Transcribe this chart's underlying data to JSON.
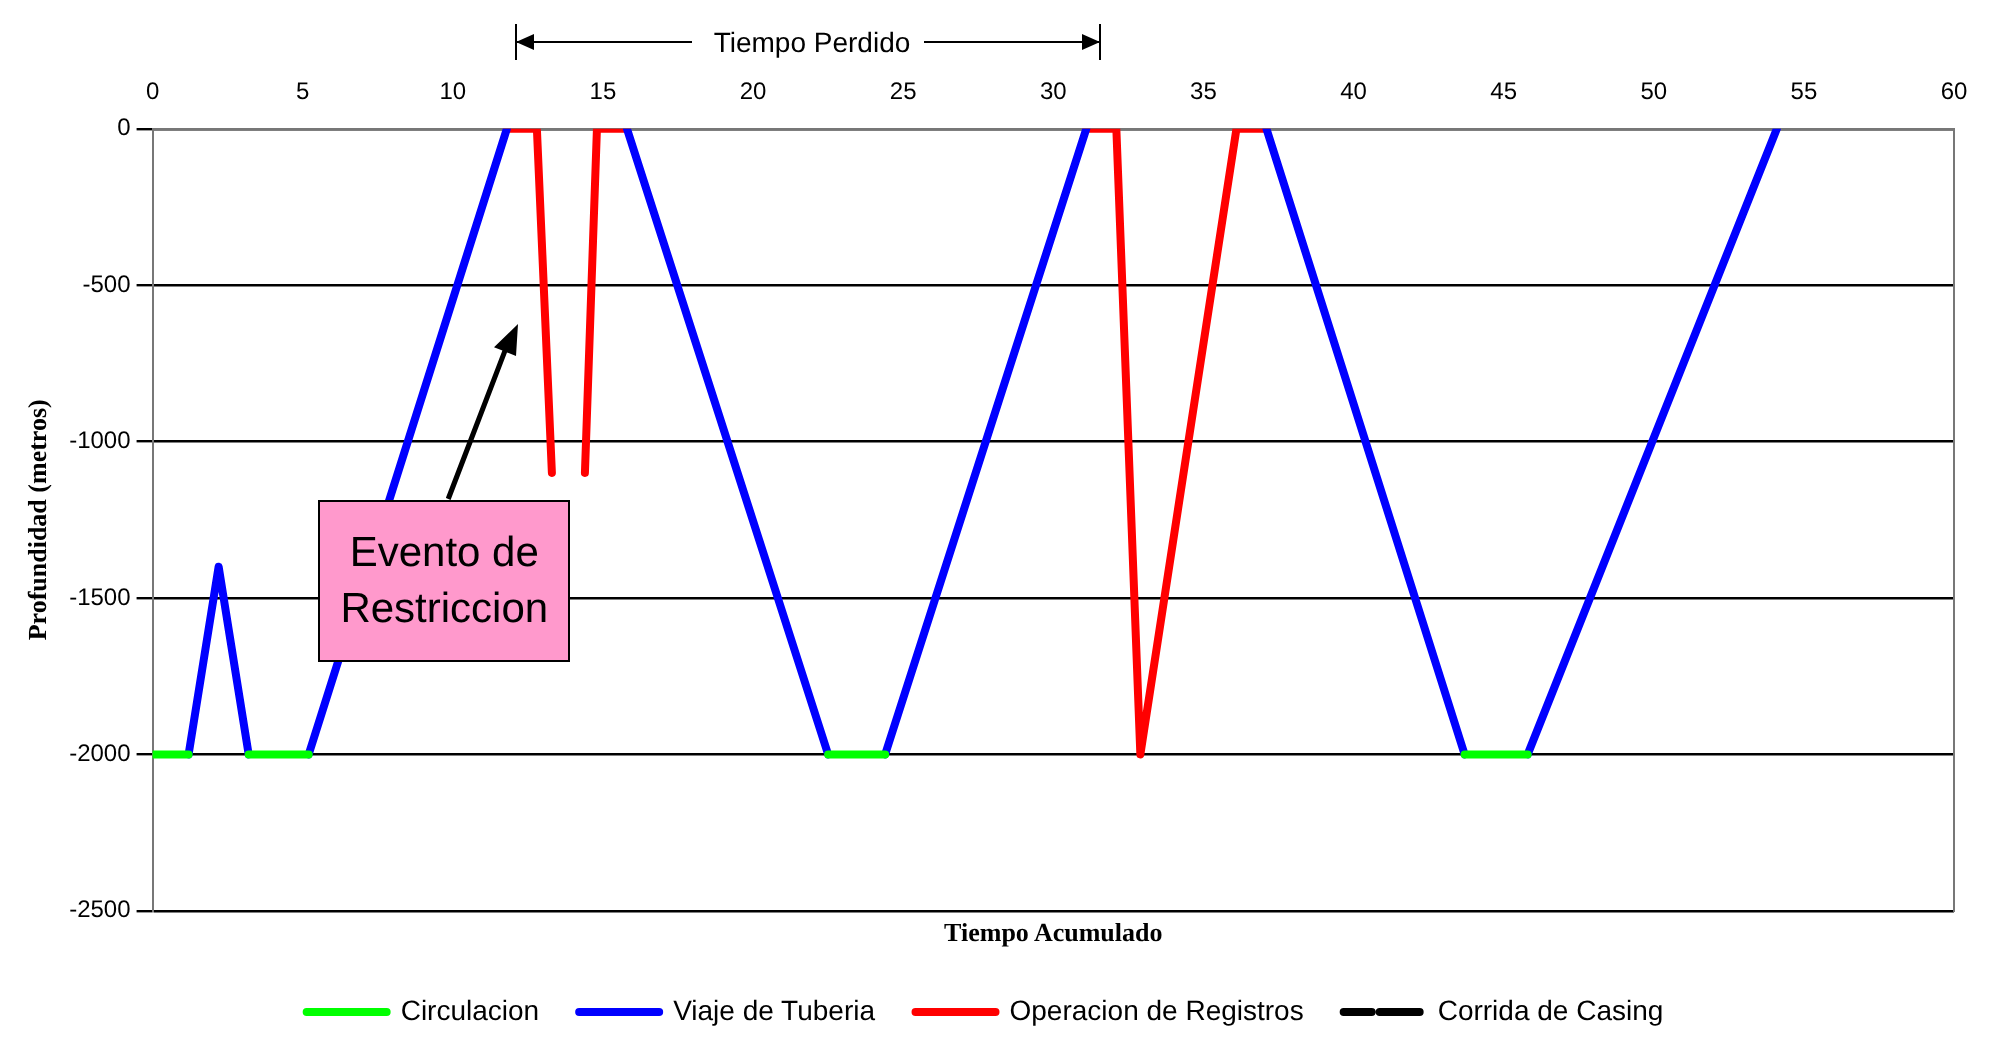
{
  "chart_data": {
    "type": "line",
    "xlabel": "Tiempo Acumulado",
    "ylabel": "Profundidad (metros)",
    "xlim": [
      0,
      60
    ],
    "xticks": [
      0,
      5,
      10,
      15,
      20,
      25,
      30,
      35,
      40,
      45,
      50,
      55,
      60
    ],
    "ylim": [
      -2500,
      0
    ],
    "yticks": [
      -2500,
      -2000,
      -1500,
      -1000,
      -500,
      0
    ],
    "grid": "y",
    "legend": "bottom",
    "marker": "none",
    "series": [
      {
        "name": "Circulacion",
        "color": "#00ff00",
        "x": [
          0,
          1.2,
          null,
          3.2,
          5.2,
          null,
          22.5,
          24.4,
          null,
          43.7,
          45.8
        ],
        "values": [
          -2000,
          -2000,
          null,
          -2000,
          -2000,
          null,
          -2000,
          -2000,
          null,
          -2000,
          -2000
        ]
      },
      {
        "name": "Viaje de Tuberia",
        "color": "#0000ff",
        "x": [
          1.2,
          2.2,
          3.2,
          null,
          5.2,
          11.8,
          null,
          15.8,
          22.5,
          null,
          24.4,
          31.1,
          null,
          37.1,
          43.7,
          null,
          45.8,
          54.1
        ],
        "values": [
          -2000,
          -1400,
          -2000,
          null,
          -2000,
          0,
          null,
          0,
          -2000,
          null,
          -2000,
          0,
          null,
          0,
          -2000,
          null,
          -2000,
          0
        ]
      },
      {
        "name": "Operacion de Registros",
        "color": "#ff0000",
        "x": [
          11.8,
          12.8,
          13.3,
          null,
          14.4,
          14.8,
          15.8,
          null,
          31.1,
          32.1,
          32.9,
          36.1,
          37.1
        ],
        "values": [
          0,
          0,
          -1100,
          null,
          -1100,
          0,
          0,
          null,
          0,
          0,
          -2000,
          0,
          0
        ]
      },
      {
        "name": "Corrida de Casing",
        "color": "#000000",
        "line_style": "dashed"
      }
    ],
    "annotations": [
      "Tiempo Perdido",
      "Evento de Restriccion"
    ]
  }
}
